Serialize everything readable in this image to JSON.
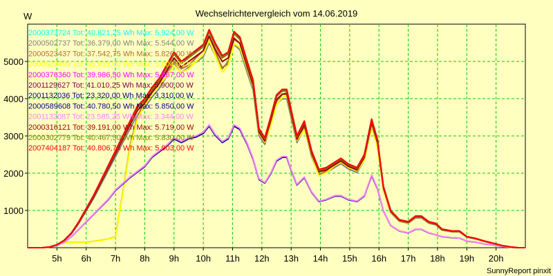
{
  "chart_data": {
    "type": "line",
    "title": "Wechselrichtervergleich vom 14.06.2019",
    "ylabel": "W",
    "xlabel": "",
    "credit": "SunnyReport pinxit",
    "x_range": [
      4.0,
      21.0
    ],
    "ylim": [
      0,
      6000
    ],
    "x_ticks": [
      {
        "x": 5,
        "label": "5h"
      },
      {
        "x": 6,
        "label": "6h"
      },
      {
        "x": 7,
        "label": "7h"
      },
      {
        "x": 8,
        "label": "8h"
      },
      {
        "x": 9,
        "label": "9h"
      },
      {
        "x": 10,
        "label": "10h"
      },
      {
        "x": 11,
        "label": "11h"
      },
      {
        "x": 12,
        "label": "12h"
      },
      {
        "x": 13,
        "label": "13h"
      },
      {
        "x": 14,
        "label": "14h"
      },
      {
        "x": 15,
        "label": "15h"
      },
      {
        "x": 16,
        "label": "16h"
      },
      {
        "x": 17,
        "label": "17h"
      },
      {
        "x": 18,
        "label": "18h"
      },
      {
        "x": 19,
        "label": "19h"
      },
      {
        "x": 20,
        "label": "20h"
      }
    ],
    "y_ticks": [
      {
        "y": 1000,
        "label": "1000"
      },
      {
        "y": 2000,
        "label": "2000"
      },
      {
        "y": 3000,
        "label": "3000"
      },
      {
        "y": 4000,
        "label": "4000"
      },
      {
        "y": 5000,
        "label": "5000"
      }
    ],
    "grid": true,
    "grid_color": "#00cc00",
    "legend_position": "top-left",
    "series": [
      {
        "name": "2000373724",
        "legend": "2000373724 Tot: 40.821,25 Wh Max: 5.924,00 W",
        "color": "#00ffff",
        "profile": "full",
        "factor": 1.0
      },
      {
        "name": "2000502737",
        "legend": "2000502737 Tot: 36.379,00 Wh Max: 5.544,00 W",
        "color": "#808080",
        "profile": "full",
        "factor": 0.94
      },
      {
        "name": "2000523437",
        "legend": "2000523437 Tot: 37.542,75 Wh Max: 5.826,00 W",
        "color": "#b07030",
        "profile": "late",
        "factor": 0.98
      },
      {
        "name": "2000529499",
        "legend": "2000529499 Tot: 35.919,00 Wh Max: 5.804,00 W",
        "color": "#ffff00",
        "profile": "late",
        "factor": 0.96
      },
      {
        "name": "2000376360",
        "legend": "2000376360 Tot: 39.986,50 Wh Max: 5.867,00 W",
        "color": "#ff00ff",
        "profile": "full",
        "factor": 0.99
      },
      {
        "name": "2001129627",
        "legend": "2001129627 Tot: 41.010,25 Wh Max: 5.900,00 W",
        "color": "#800040",
        "profile": "full",
        "factor": 1.0
      },
      {
        "name": "2001132036",
        "legend": "2001132036 Tot: 23.320,00 Wh Max: 3.310,00 W",
        "color": "#000080",
        "profile": "half",
        "factor": 0.99
      },
      {
        "name": "2000589608",
        "legend": "2000589608 Tot: 40.780,50 Wh Max: 5.850,00 W",
        "color": "#000080",
        "profile": "full",
        "factor": 0.99
      },
      {
        "name": "2001132087",
        "legend": "2001132087 Tot: 23.585,25 Wh Max: 3.344,00 W",
        "color": "#ff80ff",
        "profile": "half",
        "factor": 1.0
      },
      {
        "name": "2000316121",
        "legend": "2000316121 Tot: 39.191,00 Wh Max: 5.719,00 W",
        "color": "#a00000",
        "profile": "full",
        "factor": 0.97
      },
      {
        "name": "2000302779",
        "legend": "2000302779 Tot: 40.467,50 Wh Max: 5.830,00 W",
        "color": "#808000",
        "profile": "full",
        "factor": 0.99
      },
      {
        "name": "2007404187",
        "legend": "2007404187 Tot: 40.806,75 Wh Max: 5.903,00 W",
        "color": "#ff0000",
        "profile": "full",
        "factor": 1.0
      }
    ],
    "profiles": {
      "full": [
        [
          4.0,
          0
        ],
        [
          4.5,
          0
        ],
        [
          4.75,
          20
        ],
        [
          5.0,
          80
        ],
        [
          5.25,
          200
        ],
        [
          5.5,
          400
        ],
        [
          5.75,
          700
        ],
        [
          6.0,
          1050
        ],
        [
          6.25,
          1400
        ],
        [
          6.5,
          1800
        ],
        [
          6.75,
          2200
        ],
        [
          7.0,
          2600
        ],
        [
          7.25,
          3000
        ],
        [
          7.5,
          3400
        ],
        [
          7.75,
          3800
        ],
        [
          8.0,
          4000
        ],
        [
          8.25,
          4300
        ],
        [
          8.5,
          4550
        ],
        [
          8.75,
          4900
        ],
        [
          9.0,
          5250
        ],
        [
          9.25,
          5000
        ],
        [
          9.5,
          5150
        ],
        [
          9.75,
          5300
        ],
        [
          10.0,
          5450
        ],
        [
          10.2,
          5850
        ],
        [
          10.4,
          5500
        ],
        [
          10.65,
          5150
        ],
        [
          10.85,
          5250
        ],
        [
          11.05,
          5800
        ],
        [
          11.25,
          5650
        ],
        [
          11.5,
          5000
        ],
        [
          11.7,
          4500
        ],
        [
          11.9,
          3200
        ],
        [
          12.1,
          2950
        ],
        [
          12.3,
          3500
        ],
        [
          12.5,
          4100
        ],
        [
          12.7,
          4250
        ],
        [
          12.85,
          4250
        ],
        [
          13.0,
          3700
        ],
        [
          13.2,
          3000
        ],
        [
          13.45,
          3400
        ],
        [
          13.7,
          2600
        ],
        [
          13.95,
          2100
        ],
        [
          14.2,
          2150
        ],
        [
          14.5,
          2300
        ],
        [
          14.7,
          2400
        ],
        [
          14.95,
          2250
        ],
        [
          15.25,
          2150
        ],
        [
          15.5,
          2500
        ],
        [
          15.75,
          3450
        ],
        [
          15.95,
          2900
        ],
        [
          16.15,
          1650
        ],
        [
          16.4,
          1000
        ],
        [
          16.7,
          750
        ],
        [
          17.0,
          700
        ],
        [
          17.25,
          850
        ],
        [
          17.45,
          850
        ],
        [
          17.7,
          700
        ],
        [
          17.95,
          650
        ],
        [
          18.15,
          500
        ],
        [
          18.5,
          450
        ],
        [
          18.75,
          450
        ],
        [
          19.0,
          300
        ],
        [
          19.3,
          250
        ],
        [
          19.6,
          180
        ],
        [
          19.9,
          120
        ],
        [
          20.2,
          60
        ],
        [
          20.5,
          20
        ],
        [
          20.75,
          0
        ],
        [
          21.0,
          0
        ]
      ],
      "late": [
        [
          4.0,
          0
        ],
        [
          4.5,
          0
        ],
        [
          4.75,
          20
        ],
        [
          5.0,
          80
        ],
        [
          5.25,
          150
        ],
        [
          5.5,
          150
        ],
        [
          5.75,
          150
        ],
        [
          6.0,
          150
        ],
        [
          6.5,
          200
        ],
        [
          6.8,
          250
        ],
        [
          7.0,
          300
        ],
        [
          7.25,
          1500
        ],
        [
          7.5,
          2800
        ],
        [
          7.75,
          3600
        ],
        [
          8.0,
          4000
        ],
        [
          8.25,
          4300
        ],
        [
          8.5,
          4550
        ],
        [
          8.75,
          4800
        ],
        [
          9.0,
          5100
        ],
        [
          9.25,
          4900
        ],
        [
          9.5,
          5000
        ],
        [
          9.75,
          5200
        ],
        [
          10.0,
          5400
        ],
        [
          10.2,
          5800
        ],
        [
          10.4,
          5400
        ],
        [
          10.65,
          4900
        ],
        [
          10.85,
          5100
        ],
        [
          11.05,
          5700
        ],
        [
          11.25,
          5600
        ],
        [
          11.5,
          5000
        ],
        [
          11.7,
          4500
        ],
        [
          11.9,
          3200
        ],
        [
          12.1,
          2950
        ],
        [
          12.3,
          3400
        ],
        [
          12.5,
          4000
        ],
        [
          12.7,
          4200
        ],
        [
          12.85,
          4250
        ],
        [
          13.0,
          3700
        ],
        [
          13.2,
          3000
        ],
        [
          13.45,
          3300
        ],
        [
          13.7,
          2600
        ],
        [
          13.95,
          2000
        ],
        [
          14.2,
          2100
        ],
        [
          14.5,
          2300
        ],
        [
          14.7,
          2400
        ],
        [
          14.95,
          2250
        ],
        [
          15.25,
          2150
        ],
        [
          15.5,
          2450
        ],
        [
          15.75,
          3400
        ],
        [
          15.95,
          2800
        ],
        [
          16.15,
          1600
        ],
        [
          16.4,
          1000
        ],
        [
          16.7,
          750
        ],
        [
          17.0,
          700
        ],
        [
          17.25,
          850
        ],
        [
          17.45,
          850
        ],
        [
          17.7,
          700
        ],
        [
          17.95,
          650
        ],
        [
          18.15,
          500
        ],
        [
          18.5,
          450
        ],
        [
          18.75,
          450
        ],
        [
          19.0,
          300
        ],
        [
          19.3,
          250
        ],
        [
          19.6,
          180
        ],
        [
          19.9,
          120
        ],
        [
          20.2,
          60
        ],
        [
          20.5,
          20
        ],
        [
          20.75,
          0
        ],
        [
          21.0,
          0
        ]
      ],
      "half": [
        [
          4.0,
          0
        ],
        [
          4.5,
          0
        ],
        [
          4.75,
          20
        ],
        [
          5.0,
          60
        ],
        [
          5.25,
          150
        ],
        [
          5.5,
          300
        ],
        [
          5.75,
          500
        ],
        [
          6.0,
          700
        ],
        [
          6.25,
          900
        ],
        [
          6.5,
          1100
        ],
        [
          6.75,
          1300
        ],
        [
          7.0,
          1550
        ],
        [
          7.5,
          1900
        ],
        [
          8.0,
          2200
        ],
        [
          8.25,
          2450
        ],
        [
          8.5,
          2600
        ],
        [
          8.75,
          2750
        ],
        [
          9.0,
          2950
        ],
        [
          9.25,
          2850
        ],
        [
          9.5,
          2950
        ],
        [
          9.75,
          3000
        ],
        [
          10.0,
          3100
        ],
        [
          10.2,
          3300
        ],
        [
          10.4,
          3050
        ],
        [
          10.65,
          2850
        ],
        [
          10.85,
          2950
        ],
        [
          11.05,
          3300
        ],
        [
          11.25,
          3200
        ],
        [
          11.5,
          2800
        ],
        [
          11.7,
          2400
        ],
        [
          11.9,
          1850
        ],
        [
          12.1,
          1750
        ],
        [
          12.3,
          2000
        ],
        [
          12.5,
          2350
        ],
        [
          12.7,
          2450
        ],
        [
          12.85,
          2450
        ],
        [
          13.0,
          2100
        ],
        [
          13.2,
          1700
        ],
        [
          13.45,
          1900
        ],
        [
          13.7,
          1500
        ],
        [
          13.95,
          1250
        ],
        [
          14.2,
          1300
        ],
        [
          14.5,
          1400
        ],
        [
          14.7,
          1400
        ],
        [
          14.95,
          1300
        ],
        [
          15.25,
          1250
        ],
        [
          15.5,
          1400
        ],
        [
          15.75,
          1950
        ],
        [
          15.95,
          1600
        ],
        [
          16.15,
          1000
        ],
        [
          16.4,
          600
        ],
        [
          16.7,
          450
        ],
        [
          17.0,
          400
        ],
        [
          17.25,
          500
        ],
        [
          17.45,
          500
        ],
        [
          17.7,
          400
        ],
        [
          17.95,
          350
        ],
        [
          18.15,
          300
        ],
        [
          18.5,
          270
        ],
        [
          18.75,
          260
        ],
        [
          19.0,
          180
        ],
        [
          19.3,
          150
        ],
        [
          19.6,
          100
        ],
        [
          19.9,
          70
        ],
        [
          20.2,
          35
        ],
        [
          20.5,
          10
        ],
        [
          20.75,
          0
        ],
        [
          21.0,
          0
        ]
      ]
    }
  }
}
